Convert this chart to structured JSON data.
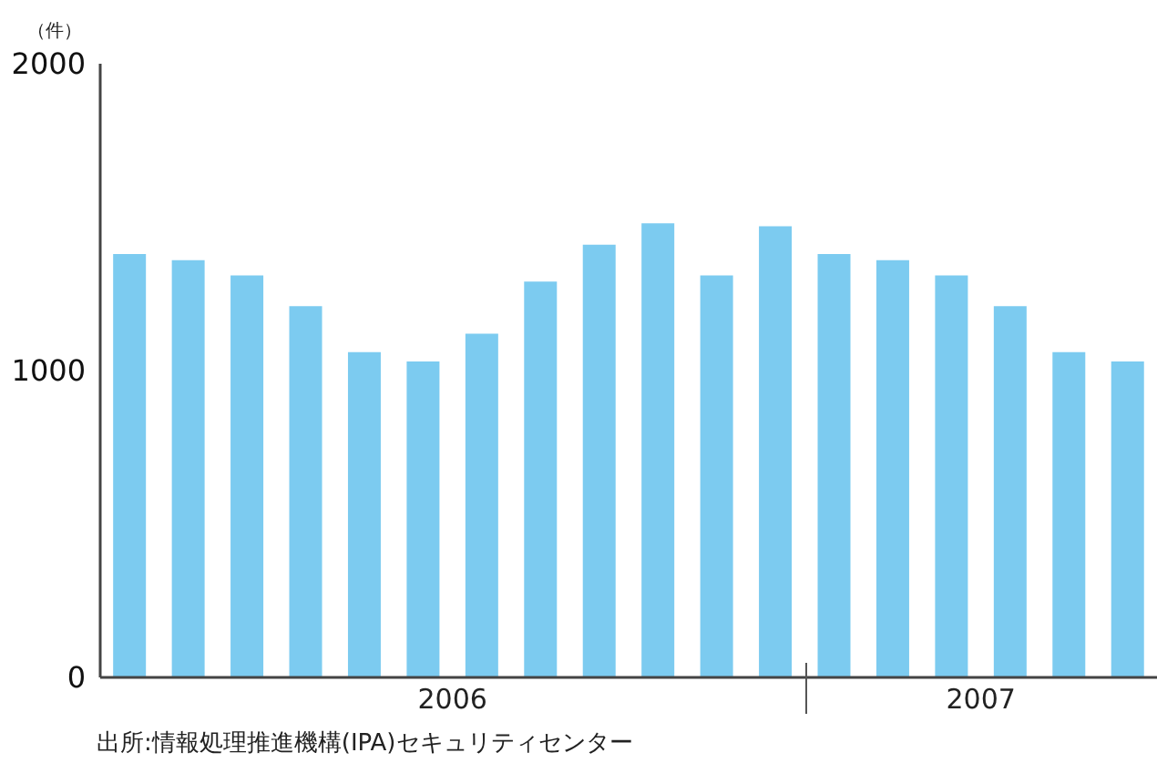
{
  "chart_data": {
    "type": "bar",
    "ylabel": "（件）",
    "categories": [
      null,
      null,
      null,
      null,
      null,
      null,
      null,
      null,
      null,
      null,
      null,
      null,
      null,
      null,
      null,
      null,
      null,
      null
    ],
    "values": [
      1380,
      1360,
      1310,
      1210,
      1060,
      1030,
      1120,
      1290,
      1410,
      1480,
      1310,
      1470,
      1380,
      1360,
      1310,
      1210,
      1060,
      1030
    ],
    "color": "#7ccbf0",
    "ylim": [
      0,
      2000
    ],
    "yticks": [
      0,
      1000,
      2000
    ],
    "annotations": [
      "2006",
      "2007",
      "出所:情報処理推進機構(IPA)セキュリティセンター"
    ]
  }
}
